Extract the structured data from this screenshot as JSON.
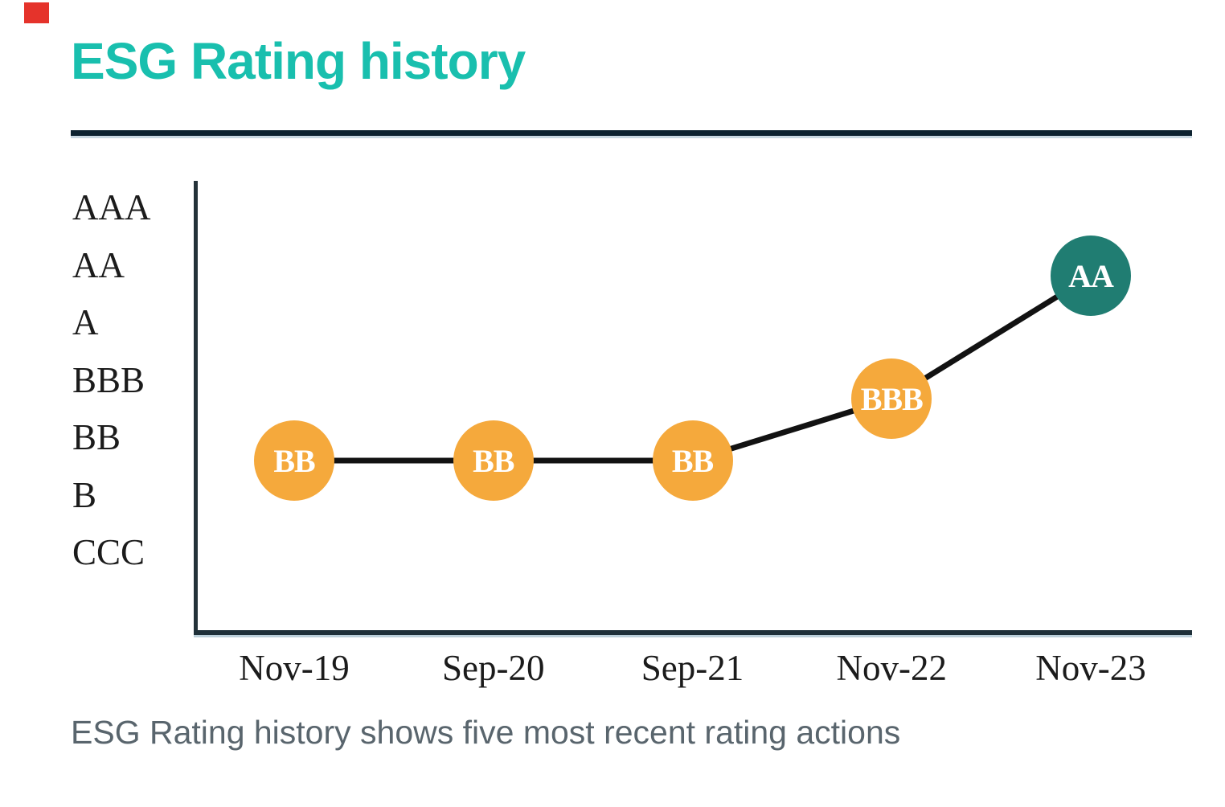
{
  "page": {
    "title": "ESG Rating history",
    "caption": "ESG Rating history shows five most recent rating actions"
  },
  "branding": {
    "accent_red": "#e5332b",
    "title_teal": "#19bfae",
    "divider_navy": "#0d2230"
  },
  "chart_data": {
    "type": "line",
    "title": "ESG Rating history",
    "categories": [
      "Nov-19",
      "Sep-20",
      "Sep-21",
      "Nov-22",
      "Nov-23"
    ],
    "y_categories": [
      "AAA",
      "AA",
      "A",
      "BBB",
      "BB",
      "B",
      "CCC"
    ],
    "series": [
      {
        "name": "ESG Rating",
        "values": [
          "BB",
          "BB",
          "BB",
          "BBB",
          "AA"
        ]
      }
    ],
    "point_colors": [
      "#f5a93c",
      "#f5a93c",
      "#f5a93c",
      "#f5a93c",
      "#207d72"
    ],
    "marker_label_color": "#ffffff",
    "line_color": "#121212",
    "axis_color": "#243239",
    "grid": false,
    "legend": false
  }
}
